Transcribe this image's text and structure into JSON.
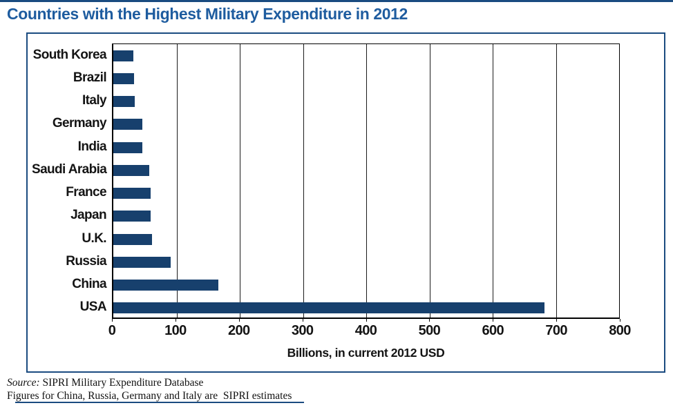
{
  "page": {
    "title": "Countries with the Highest Military Expenditure in 2012",
    "accent_color": "#1e5c9f",
    "bar_color": "#17406d",
    "box_border_color": "#1a4b80"
  },
  "chart_data": {
    "type": "bar",
    "orientation": "horizontal",
    "title": "Countries with the Highest Military Expenditure in 2012",
    "categories": [
      "South Korea",
      "Brazil",
      "Italy",
      "Germany",
      "India",
      "Saudi Arabia",
      "France",
      "Japan",
      "U.K.",
      "Russia",
      "China",
      "USA"
    ],
    "values": [
      32,
      33,
      34,
      46,
      46,
      57,
      59,
      59,
      61,
      91,
      166,
      682
    ],
    "xlabel": "Billions, in current 2012 USD",
    "ylabel": "",
    "xlim": [
      0,
      800
    ],
    "xticks": [
      0,
      100,
      200,
      300,
      400,
      500,
      600,
      700,
      800
    ],
    "grid": "vertical",
    "legend": "none"
  },
  "footer": {
    "source_label": "Source:",
    "source_text": " SIPRI Military Expenditure Database",
    "note": "Figures for China, Russia, Germany and Italy are  SIPRI estimates"
  }
}
